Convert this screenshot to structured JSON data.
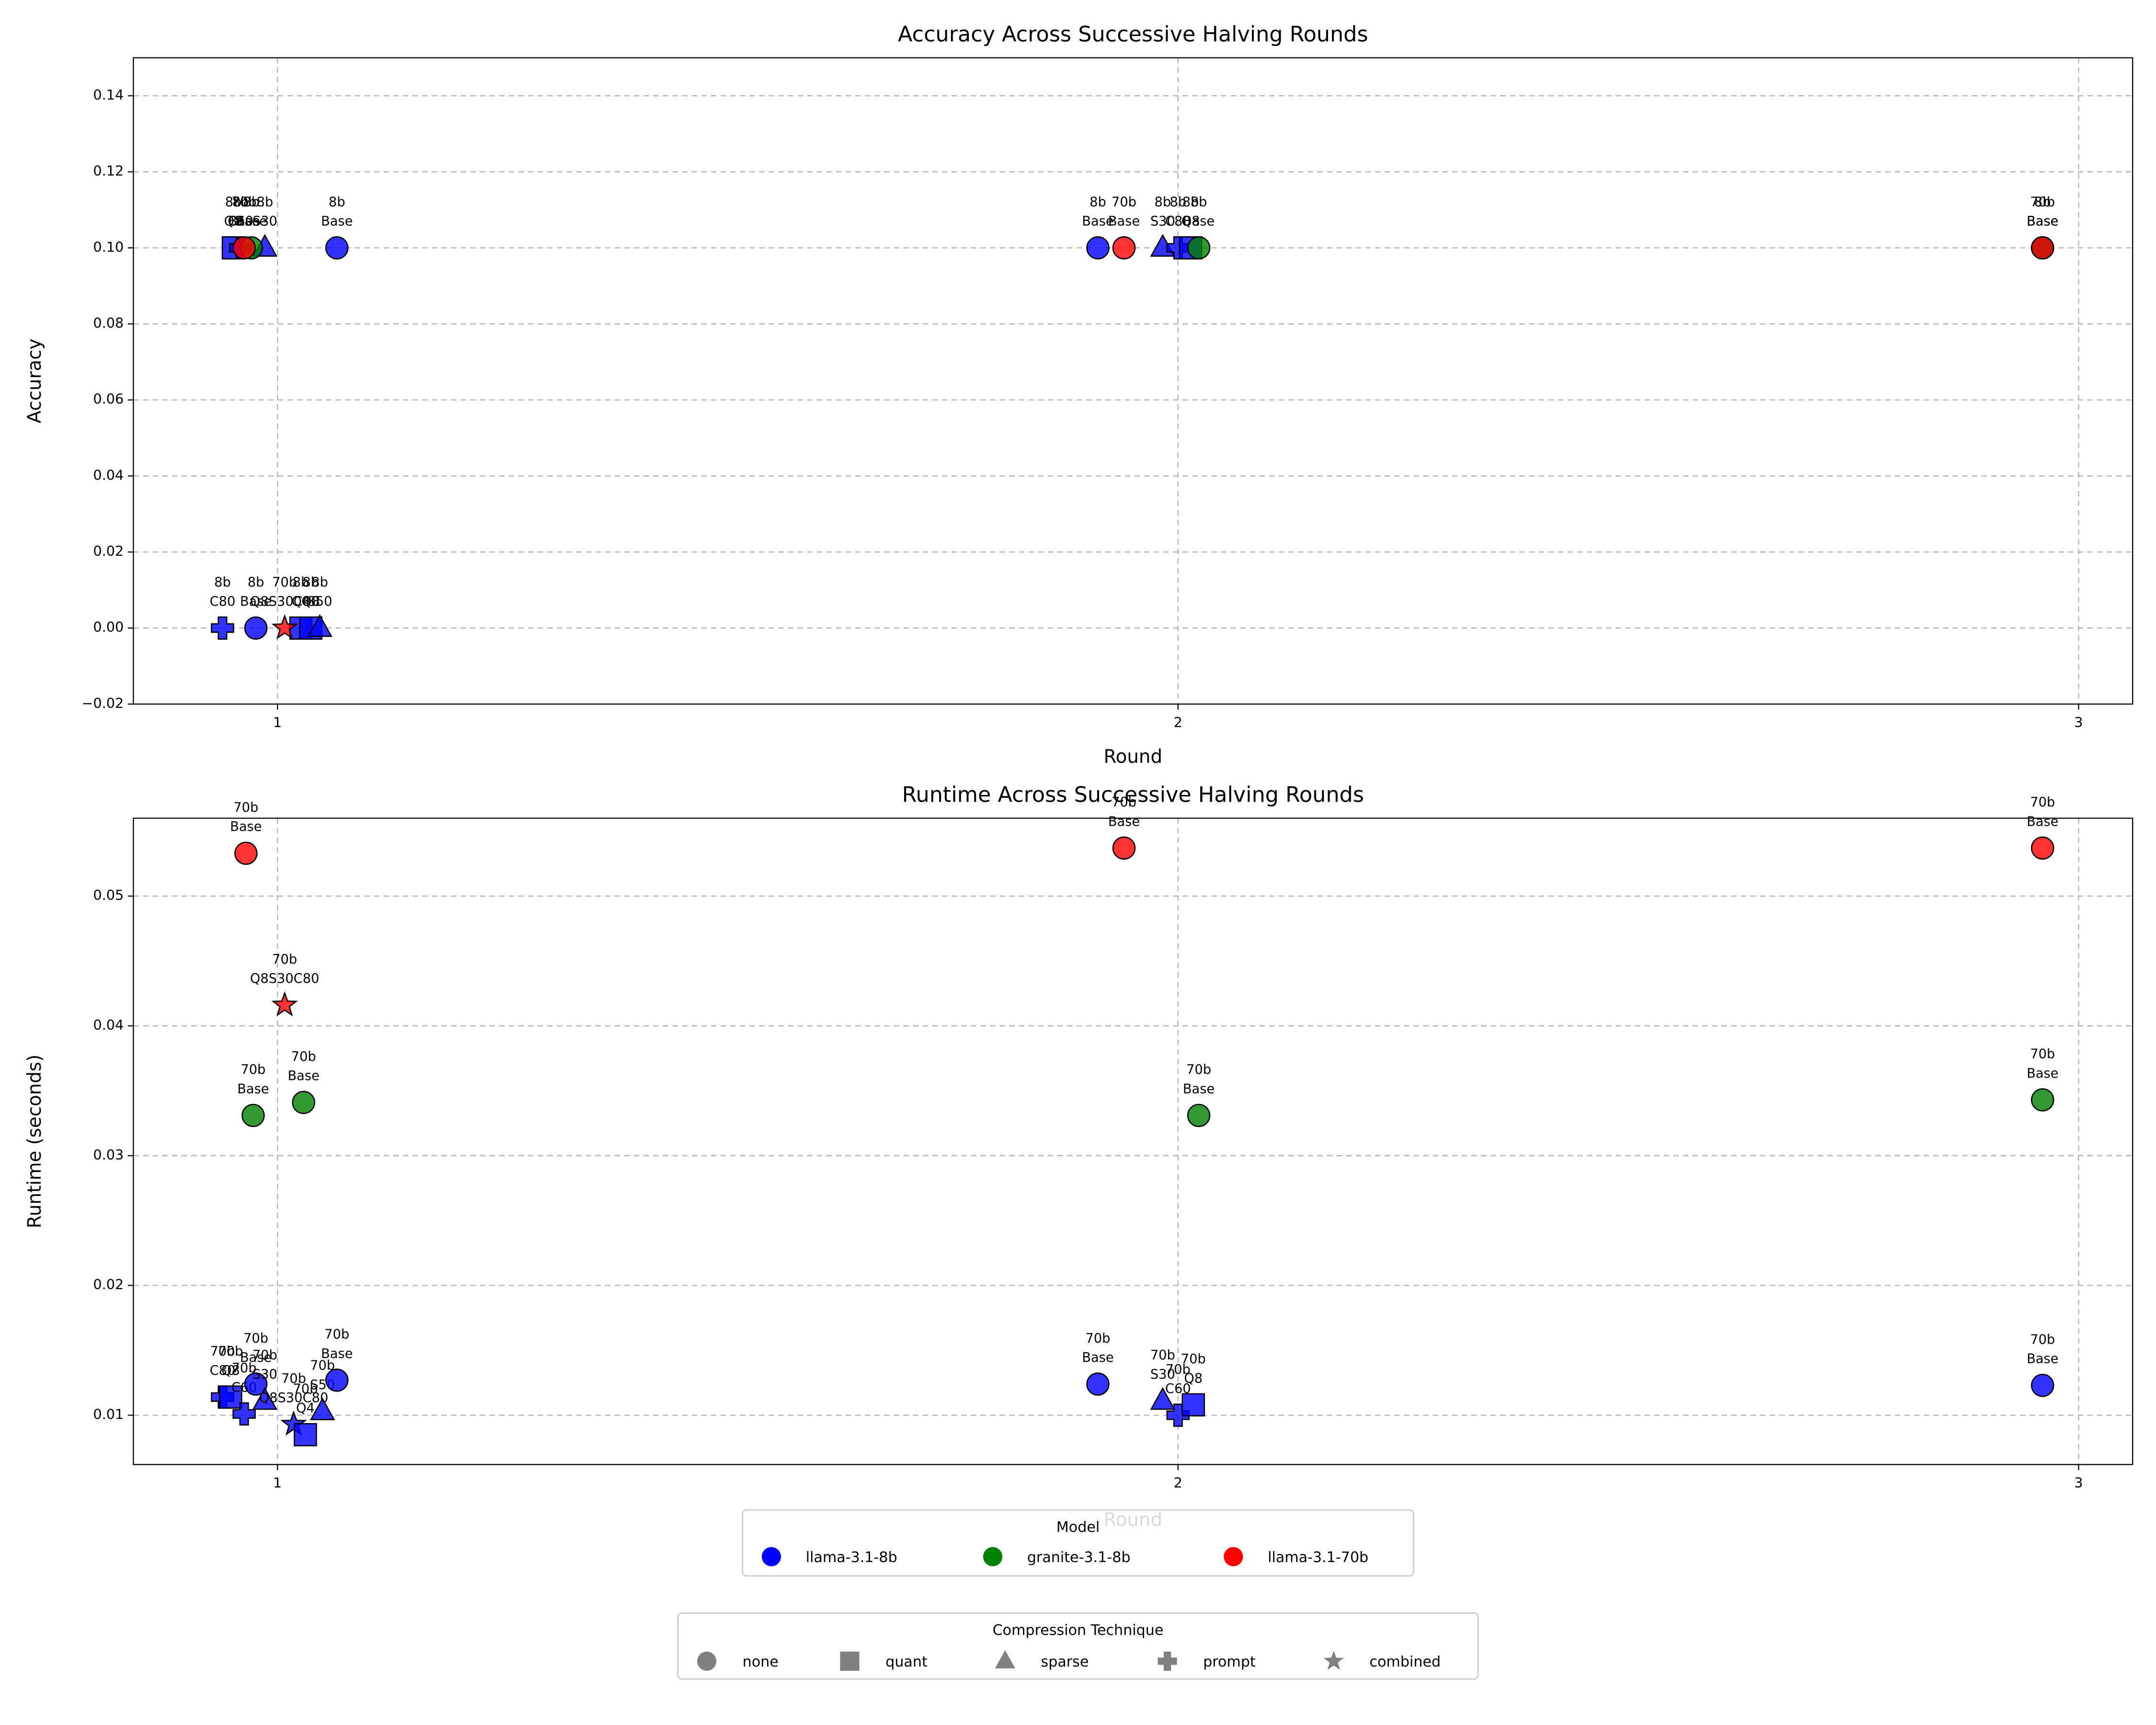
{
  "chart_data": [
    {
      "type": "scatter",
      "title": "Accuracy Across Successive Halving Rounds",
      "xlabel": "Round",
      "ylabel": "Accuracy",
      "xlim": [
        0.84,
        3.06
      ],
      "ylim": [
        -0.02,
        0.15
      ],
      "xticks": [
        1,
        2,
        3
      ],
      "yticks": [
        {
          "value": -0.02,
          "label": "−0.02"
        },
        {
          "value": 0,
          "label": "0.00"
        },
        0.02,
        0.04,
        0.06,
        0.08,
        {
          "value": 0.1,
          "label": "0.10"
        },
        0.12,
        0.14
      ],
      "grid": true,
      "series": [
        {
          "name": "llama-3.1-8b",
          "color": "blue",
          "x": [
            0.951,
            0.959,
            0.986,
            1.066,
            1.911,
            1.983,
            2.0,
            2.014,
            2.96,
            0.939,
            0.976,
            1.026,
            1.037,
            1.047
          ],
          "values": [
            0.1,
            0.1,
            0.1,
            0.1,
            0.1,
            0.1,
            0.1,
            0.1,
            0.1,
            0,
            0,
            0,
            0,
            0
          ],
          "techniques": [
            "quant",
            "prompt",
            "sparse",
            "none",
            "none",
            "sparse",
            "prompt",
            "quant",
            "none",
            "prompt",
            "none",
            "quant",
            "quant",
            "sparse"
          ],
          "point_labels": [
            "8b\nQ8",
            "8b\nC60",
            "8b\nS30",
            "8b\nBase",
            "8b\nBase",
            "8b\nS30",
            "8b\nC80",
            "8b\nQ8",
            "8b\nBase",
            "8b\nC80",
            "8b\nBase",
            "8b\nQ4",
            "8b\nQ8",
            "8b\nS50"
          ]
        },
        {
          "name": "granite-3.1-8b",
          "color": "green",
          "x": [
            0.971,
            2.023,
            2.96
          ],
          "values": [
            0.1,
            0.1,
            0.1
          ],
          "techniques": [
            "none",
            "none",
            "none"
          ],
          "point_labels": [
            "8b\nBase",
            "8b\nBase",
            "8b\nBase"
          ]
        },
        {
          "name": "llama-3.1-70b",
          "color": "red",
          "x": [
            0.963,
            1.94,
            2.96,
            1.008
          ],
          "values": [
            0.1,
            0.1,
            0.1,
            0
          ],
          "techniques": [
            "none",
            "none",
            "none",
            "combined"
          ],
          "point_labels": [
            "70b\nBase",
            "70b\nBase",
            "70b\nBase",
            "70b\nQ8S30C80"
          ]
        }
      ]
    },
    {
      "type": "scatter",
      "title": "Runtime Across Successive Halving Rounds",
      "xlabel": "Round",
      "ylabel": "Runtime (seconds)",
      "xlim": [
        0.84,
        3.06
      ],
      "ylim": [
        0.0062,
        0.056
      ],
      "xticks": [
        1,
        2,
        3
      ],
      "yticks": [
        0.01,
        0.02,
        0.03,
        0.04,
        0.05
      ],
      "grid": true,
      "legend_title": "Model",
      "marker_legend": {
        "title": "Compression Technique",
        "entries": [
          "none",
          "quant",
          "sparse",
          "prompt",
          "combined"
        ]
      },
      "series": [
        {
          "name": "llama-3.1-8b",
          "color": "blue",
          "x": [
            0.939,
            0.948,
            0.963,
            0.976,
            0.986,
            1.018,
            1.031,
            1.05,
            1.066,
            1.911,
            1.983,
            2.0,
            2.017,
            2.96
          ],
          "values": [
            0.0114,
            0.0114,
            0.0101,
            0.0124,
            0.0111,
            0.0093,
            0.0085,
            0.0103,
            0.0127,
            0.0124,
            0.0111,
            0.01,
            0.0108,
            0.0123
          ],
          "techniques": [
            "prompt",
            "quant",
            "prompt",
            "none",
            "sparse",
            "combined",
            "quant",
            "sparse",
            "none",
            "none",
            "sparse",
            "prompt",
            "quant",
            "none"
          ],
          "point_labels": [
            "70b\nC80",
            "70b\nQ8",
            "70b\nC60",
            "70b\nBase",
            "70b\nS30",
            "70b\nQ8S30C80",
            "70b\nQ4",
            "70b\nS50",
            "70b\nBase",
            "70b\nBase",
            "70b\nS30",
            "70b\nC60",
            "70b\nQ8",
            "70b\nBase"
          ]
        },
        {
          "name": "granite-3.1-8b",
          "color": "green",
          "x": [
            0.973,
            1.029,
            2.023,
            2.96
          ],
          "values": [
            0.0331,
            0.0341,
            0.0331,
            0.0343
          ],
          "techniques": [
            "none",
            "none",
            "none",
            "none"
          ],
          "point_labels": [
            "70b\nBase",
            "70b\nBase",
            "70b\nBase",
            "70b\nBase"
          ]
        },
        {
          "name": "llama-3.1-70b",
          "color": "red",
          "x": [
            0.965,
            1.008,
            1.94,
            2.96
          ],
          "values": [
            0.0533,
            0.0416,
            0.0537,
            0.0537
          ],
          "techniques": [
            "none",
            "combined",
            "none",
            "none"
          ],
          "point_labels": [
            "70b\nBase",
            "70b\nQ8S30C80",
            "70b\nBase",
            "70b\nBase"
          ]
        }
      ]
    }
  ]
}
